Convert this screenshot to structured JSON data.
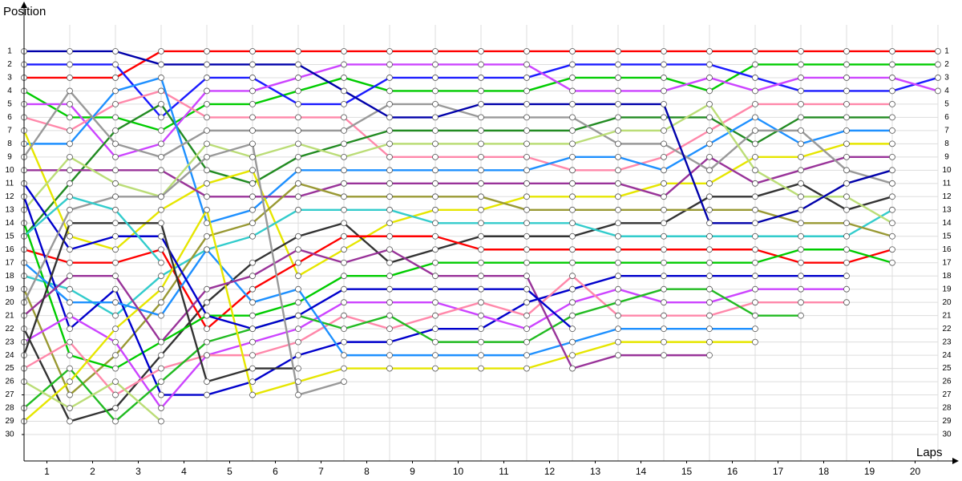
{
  "chart_data": {
    "type": "line",
    "y_label": "Position",
    "x_label": "Laps",
    "x": [
      0,
      1,
      2,
      3,
      4,
      5,
      6,
      7,
      8,
      9,
      10,
      11,
      12,
      13,
      14,
      15,
      16,
      17,
      18,
      19,
      20
    ],
    "xlim": [
      0,
      20
    ],
    "xticks": [
      {
        "value": 0.5,
        "label": "1"
      },
      {
        "value": 1.5,
        "label": "2"
      },
      {
        "value": 2.5,
        "label": "3"
      },
      {
        "value": 3.5,
        "label": "4"
      },
      {
        "value": 4.5,
        "label": "5"
      },
      {
        "value": 5.5,
        "label": "6"
      },
      {
        "value": 6.5,
        "label": "7"
      },
      {
        "value": 7.5,
        "label": "8"
      },
      {
        "value": 8.5,
        "label": "9"
      },
      {
        "value": 9.5,
        "label": "10"
      },
      {
        "value": 10.5,
        "label": "11"
      },
      {
        "value": 11.5,
        "label": "12"
      },
      {
        "value": 12.5,
        "label": "13"
      },
      {
        "value": 13.5,
        "label": "14"
      },
      {
        "value": 14.5,
        "label": "15"
      },
      {
        "value": 15.5,
        "label": "16"
      },
      {
        "value": 16.5,
        "label": "17"
      },
      {
        "value": 17.5,
        "label": "18"
      },
      {
        "value": 18.5,
        "label": "19"
      },
      {
        "value": 19.5,
        "label": "20"
      }
    ],
    "ylim": [
      32,
      -1
    ],
    "yticks": [
      1,
      2,
      3,
      4,
      5,
      6,
      7,
      8,
      9,
      10,
      11,
      12,
      13,
      14,
      15,
      16,
      17,
      18,
      19,
      20,
      21,
      22,
      23,
      24,
      25,
      26,
      27,
      28,
      29,
      30
    ],
    "grid": true,
    "series": [
      {
        "color": "#ff0000",
        "values": [
          3,
          3,
          3,
          1,
          1,
          1,
          1,
          1,
          1,
          1,
          1,
          1,
          1,
          1,
          1,
          1,
          1,
          1,
          1,
          1,
          1
        ]
      },
      {
        "color": "#00cc00",
        "values": [
          4,
          6,
          6,
          7,
          5,
          5,
          4,
          3,
          4,
          4,
          4,
          4,
          3,
          3,
          3,
          4,
          2,
          2,
          2,
          2,
          2
        ]
      },
      {
        "color": "#1a1aff",
        "values": [
          2,
          2,
          2,
          6,
          3,
          3,
          5,
          5,
          3,
          3,
          3,
          3,
          2,
          2,
          2,
          2,
          3,
          4,
          4,
          4,
          3
        ]
      },
      {
        "color": "#cc44ff",
        "values": [
          5,
          5,
          9,
          8,
          4,
          4,
          3,
          2,
          2,
          2,
          2,
          2,
          4,
          4,
          4,
          3,
          4,
          3,
          3,
          3,
          4
        ]
      },
      {
        "color": "#ff88aa",
        "values": [
          6,
          7,
          5,
          4,
          6,
          6,
          6,
          6,
          9,
          9,
          9,
          9,
          10,
          10,
          9,
          7,
          5,
          5,
          5,
          5,
          null
        ]
      },
      {
        "color": "#228b22",
        "values": [
          15,
          11,
          7,
          5,
          10,
          11,
          9,
          8,
          7,
          7,
          7,
          7,
          7,
          6,
          6,
          6,
          8,
          6,
          6,
          6,
          null
        ]
      },
      {
        "color": "#1e90ff",
        "values": [
          8,
          8,
          4,
          3,
          14,
          13,
          10,
          10,
          10,
          10,
          10,
          10,
          9,
          9,
          10,
          8,
          6,
          8,
          7,
          7,
          null
        ]
      },
      {
        "color": "#e6e600",
        "values": [
          7,
          15,
          16,
          13,
          11,
          10,
          18,
          16,
          14,
          13,
          13,
          12,
          12,
          12,
          11,
          11,
          9,
          9,
          8,
          8,
          null
        ]
      },
      {
        "color": "#993399",
        "values": [
          10,
          10,
          10,
          10,
          12,
          12,
          12,
          11,
          11,
          11,
          11,
          11,
          11,
          11,
          12,
          9,
          11,
          10,
          9,
          9,
          null
        ]
      },
      {
        "color": "#999999",
        "values": [
          9,
          4,
          8,
          9,
          7,
          7,
          7,
          7,
          5,
          5,
          6,
          6,
          6,
          8,
          8,
          10,
          7,
          7,
          10,
          11,
          null
        ]
      },
      {
        "color": "#333333",
        "values": [
          22,
          29,
          28,
          24,
          20,
          17,
          15,
          14,
          17,
          16,
          15,
          15,
          15,
          14,
          14,
          12,
          12,
          11,
          13,
          12,
          null
        ]
      },
      {
        "color": "#33cccc",
        "values": [
          18,
          19,
          21,
          18,
          16,
          15,
          13,
          13,
          13,
          14,
          14,
          14,
          14,
          15,
          15,
          15,
          15,
          15,
          15,
          13,
          null
        ]
      },
      {
        "color": "#bbdd77",
        "values": [
          13,
          9,
          11,
          12,
          8,
          9,
          8,
          9,
          8,
          8,
          8,
          8,
          8,
          7,
          7,
          5,
          10,
          12,
          12,
          14,
          null
        ]
      },
      {
        "color": "#999933",
        "values": [
          19,
          27,
          24,
          20,
          15,
          14,
          11,
          12,
          12,
          12,
          12,
          13,
          13,
          13,
          13,
          13,
          13,
          14,
          14,
          15,
          null
        ]
      },
      {
        "color": "#ff0000",
        "values": [
          16,
          17,
          17,
          16,
          22,
          19,
          17,
          15,
          15,
          15,
          16,
          16,
          16,
          16,
          16,
          16,
          16,
          17,
          17,
          16,
          null
        ]
      },
      {
        "color": "#00cc00",
        "values": [
          14,
          24,
          25,
          23,
          21,
          21,
          20,
          18,
          18,
          17,
          17,
          17,
          17,
          17,
          17,
          17,
          17,
          16,
          16,
          17,
          null
        ]
      },
      {
        "color": "#0000aa",
        "values": [
          1,
          1,
          1,
          2,
          2,
          2,
          2,
          4,
          6,
          6,
          5,
          5,
          5,
          5,
          5,
          14,
          14,
          13,
          11,
          10,
          null
        ]
      },
      {
        "color": "#0000cc",
        "values": [
          12,
          22,
          19,
          27,
          27,
          26,
          24,
          23,
          23,
          22,
          22,
          20,
          19,
          18,
          18,
          18,
          18,
          18,
          18,
          null,
          null
        ]
      },
      {
        "color": "#cc44ff",
        "values": [
          23,
          21,
          23,
          28,
          24,
          23,
          22,
          20,
          20,
          20,
          21,
          22,
          20,
          19,
          20,
          20,
          19,
          19,
          19,
          null,
          null
        ]
      },
      {
        "color": "#ff88aa",
        "values": [
          25,
          23,
          27,
          25,
          24,
          24,
          23,
          21,
          22,
          21,
          20,
          21,
          18,
          21,
          21,
          21,
          20,
          20,
          20,
          null,
          null
        ]
      },
      {
        "color": "#22bb22",
        "values": [
          28,
          25,
          29,
          26,
          23,
          22,
          21,
          22,
          21,
          23,
          23,
          23,
          21,
          20,
          19,
          19,
          21,
          21,
          null,
          null,
          null
        ]
      },
      {
        "color": "#1e90ff",
        "values": [
          17,
          20,
          20,
          21,
          16,
          20,
          19,
          24,
          24,
          24,
          24,
          24,
          23,
          22,
          22,
          22,
          22,
          null,
          null,
          null,
          null
        ]
      },
      {
        "color": "#e6e600",
        "values": [
          29,
          26,
          22,
          19,
          13,
          27,
          26,
          25,
          25,
          25,
          25,
          25,
          24,
          23,
          23,
          23,
          23,
          null,
          null,
          null,
          null
        ]
      },
      {
        "color": "#993399",
        "values": [
          21,
          18,
          18,
          23,
          19,
          18,
          16,
          17,
          16,
          18,
          18,
          18,
          25,
          24,
          24,
          24,
          null,
          null,
          null,
          null,
          null
        ]
      },
      {
        "color": "#0000cc",
        "values": [
          11,
          16,
          15,
          15,
          21,
          22,
          21,
          19,
          19,
          19,
          19,
          19,
          22,
          null,
          null,
          null,
          null,
          null,
          null,
          null,
          null
        ]
      },
      {
        "color": "#333333",
        "values": [
          24,
          14,
          14,
          14,
          26,
          25,
          25,
          null,
          null,
          null,
          null,
          null,
          null,
          null,
          null,
          null,
          null,
          null,
          null,
          null,
          null
        ]
      },
      {
        "color": "#999999",
        "values": [
          20,
          13,
          12,
          12,
          9,
          8,
          27,
          26,
          null,
          null,
          null,
          null,
          null,
          null,
          null,
          null,
          null,
          null,
          null,
          null,
          null
        ]
      },
      {
        "color": "#33cccc",
        "values": [
          15,
          12,
          13,
          17,
          null,
          null,
          null,
          null,
          null,
          null,
          null,
          null,
          null,
          null,
          null,
          null,
          null,
          null,
          null,
          null,
          null
        ]
      },
      {
        "color": "#bbdd77",
        "values": [
          26,
          28,
          26,
          29,
          null,
          null,
          null,
          null,
          null,
          null,
          null,
          null,
          null,
          null,
          null,
          null,
          null,
          null,
          null,
          null,
          null
        ]
      }
    ]
  }
}
